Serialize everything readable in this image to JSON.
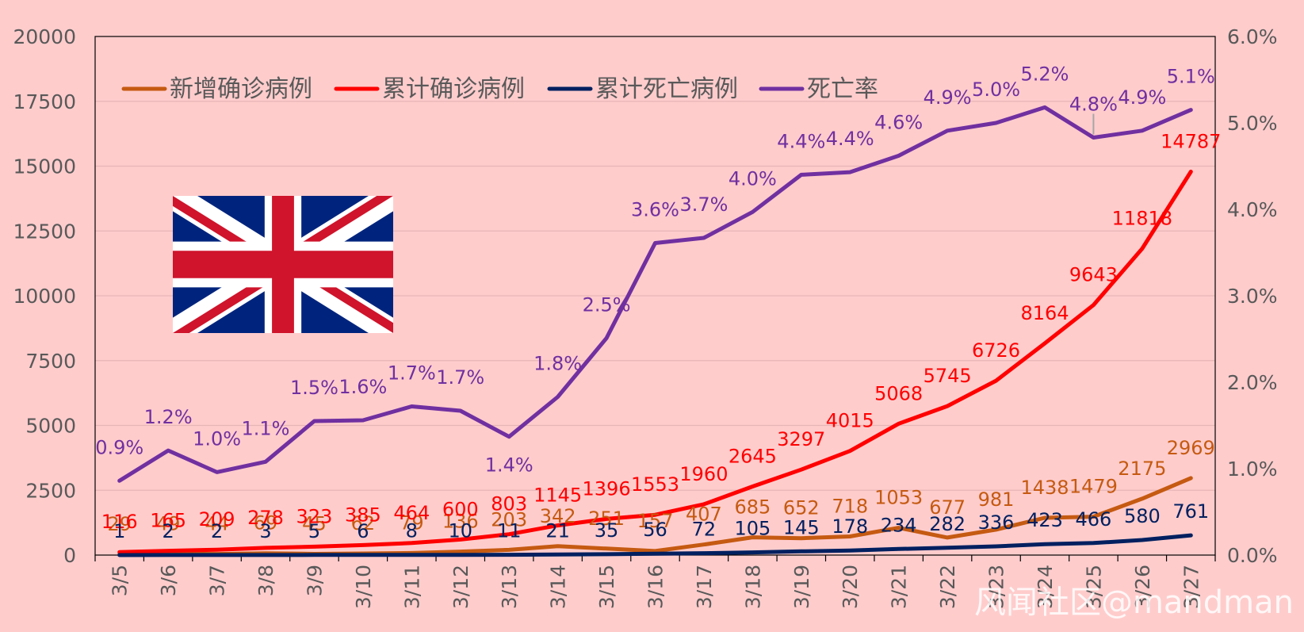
{
  "chart_data": {
    "type": "line",
    "title": "",
    "categories": [
      "3/5",
      "3/6",
      "3/7",
      "3/8",
      "3/9",
      "3/10",
      "3/11",
      "3/12",
      "3/13",
      "3/14",
      "3/15",
      "3/16",
      "3/17",
      "3/18",
      "3/19",
      "3/20",
      "3/21",
      "3/22",
      "3/23",
      "3/24",
      "3/25",
      "3/26",
      "3/27"
    ],
    "y_left": {
      "min": 0,
      "max": 20000,
      "step": 2500,
      "ticks": [
        "0",
        "2500",
        "5000",
        "7500",
        "10000",
        "12500",
        "15000",
        "17500",
        "20000"
      ]
    },
    "y_right": {
      "min": 0,
      "max": 0.06,
      "ticks": [
        "0.0%",
        "1.0%",
        "2.0%",
        "3.0%",
        "4.0%",
        "5.0%",
        "6.0%"
      ]
    },
    "legend_position": "top-left",
    "series": [
      {
        "name": "新增确诊病例",
        "axis": "left",
        "color": "#c55a11",
        "values": [
          29,
          49,
          44,
          69,
          45,
          62,
          79,
          136,
          203,
          342,
          251,
          157,
          407,
          685,
          652,
          718,
          1053,
          677,
          981,
          1438,
          1479,
          2175,
          2969
        ],
        "labels": [
          "29",
          "49",
          "44",
          "69",
          "45",
          "62",
          "79",
          "136",
          "203",
          "342",
          "251",
          "157",
          "407",
          "685",
          "652",
          "718",
          "1053",
          "677",
          "981",
          "1438",
          "1479",
          "2175",
          "2969"
        ]
      },
      {
        "name": "累计确诊病例",
        "axis": "left",
        "color": "#ff0000",
        "values": [
          116,
          165,
          209,
          278,
          323,
          385,
          464,
          600,
          803,
          1145,
          1396,
          1553,
          1960,
          2645,
          3297,
          4015,
          5068,
          5745,
          6726,
          8164,
          9643,
          11818,
          14787
        ],
        "labels": [
          "116",
          "165",
          "209",
          "278",
          "323",
          "385",
          "464",
          "600",
          "803",
          "1145",
          "1396",
          "1553",
          "1960",
          "2645",
          "3297",
          "4015",
          "5068",
          "5745",
          "6726",
          "8164",
          "9643",
          "11818",
          "14787"
        ]
      },
      {
        "name": "累计死亡病例",
        "axis": "left",
        "color": "#002060",
        "values": [
          1,
          2,
          2,
          3,
          5,
          6,
          8,
          10,
          11,
          21,
          35,
          56,
          72,
          105,
          145,
          178,
          234,
          282,
          336,
          423,
          466,
          580,
          761
        ],
        "labels": [
          "1",
          "2",
          "2",
          "3",
          "5",
          "6",
          "8",
          "10",
          "11",
          "21",
          "35",
          "56",
          "72",
          "105",
          "145",
          "178",
          "234",
          "282",
          "336",
          "423",
          "466",
          "580",
          "761"
        ]
      },
      {
        "name": "死亡率",
        "axis": "right",
        "color": "#7030a0",
        "values": [
          0.0086,
          0.0121,
          0.0096,
          0.0108,
          0.0155,
          0.0156,
          0.0172,
          0.0167,
          0.0137,
          0.0183,
          0.0251,
          0.0361,
          0.0367,
          0.0397,
          0.044,
          0.0443,
          0.0462,
          0.0491,
          0.05,
          0.0518,
          0.0483,
          0.0491,
          0.0515
        ],
        "labels": [
          "0.9%",
          "1.2%",
          "1.0%",
          "1.1%",
          "1.5%",
          "1.6%",
          "1.7%",
          "1.7%",
          "1.4%",
          "1.8%",
          "2.5%",
          "3.6%",
          "3.7%",
          "4.0%",
          "4.4%",
          "4.4%",
          "4.6%",
          "4.9%",
          "5.0%",
          "5.2%",
          "4.8%",
          "4.9%",
          "5.1%"
        ]
      }
    ]
  },
  "watermark": "风闻社区@mandman",
  "flag": "uk-flag"
}
